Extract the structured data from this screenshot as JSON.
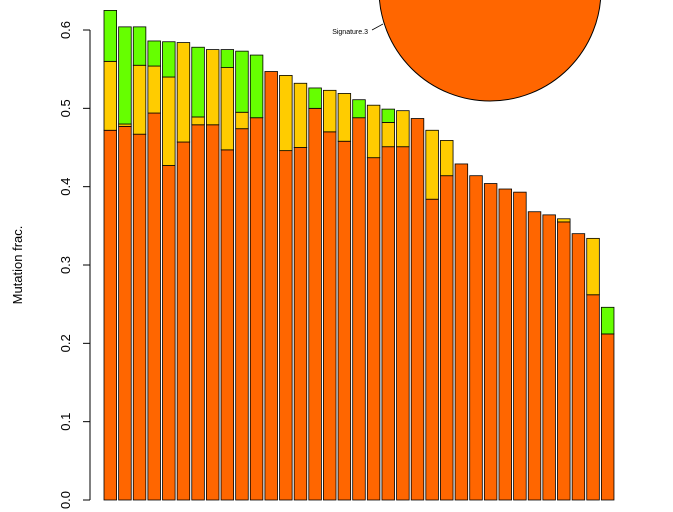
{
  "chart_data": [
    {
      "type": "stacked_bar",
      "y_label": "Mutation frac.",
      "ylim": [
        0,
        0.6
      ],
      "yticks": [
        {
          "value": 0,
          "label": "0.0"
        },
        0.1,
        0.2,
        0.3,
        0.4,
        0.5,
        0.6
      ],
      "series": [
        {
          "color": "#ff6600",
          "values": [
            0.472,
            0.477,
            0.467,
            0.494,
            0.427,
            0.457,
            0.479,
            0.479,
            0.447,
            0.474,
            0.488,
            0.547,
            0.446,
            0.45,
            0.5,
            0.47,
            0.458,
            0.488,
            0.437,
            0.451,
            0.451,
            0.487,
            0.384,
            0.414,
            0.429,
            0.414,
            0.404,
            0.397,
            0.393,
            0.368,
            0.364,
            0.355,
            0.34,
            0.262,
            0.212
          ]
        },
        {
          "color": "#ffcc00",
          "values": [
            0.088,
            0.003,
            0.088,
            0.06,
            0.113,
            0.127,
            0.01,
            0.096,
            0.105,
            0.021,
            0,
            0,
            0.096,
            0.082,
            0,
            0.053,
            0.061,
            0,
            0.067,
            0.031,
            0.046,
            0,
            0.088,
            0.045,
            0,
            0,
            0,
            0,
            0,
            0,
            0,
            0.004,
            0,
            0.072,
            0
          ]
        },
        {
          "color": "#66ff00",
          "values": [
            0.065,
            0.124,
            0.049,
            0.032,
            0.045,
            0,
            0.089,
            0,
            0.023,
            0.078,
            0.08,
            0,
            0,
            0,
            0.026,
            0,
            0,
            0.023,
            0,
            0.017,
            0,
            0,
            0,
            0,
            0,
            0,
            0,
            0,
            0,
            0,
            0,
            0,
            0,
            0,
            0.034
          ]
        }
      ]
    },
    {
      "type": "pie",
      "labels": [
        "Signature.3"
      ],
      "values": [
        100
      ],
      "colors": [
        "#ff6600"
      ]
    }
  ]
}
